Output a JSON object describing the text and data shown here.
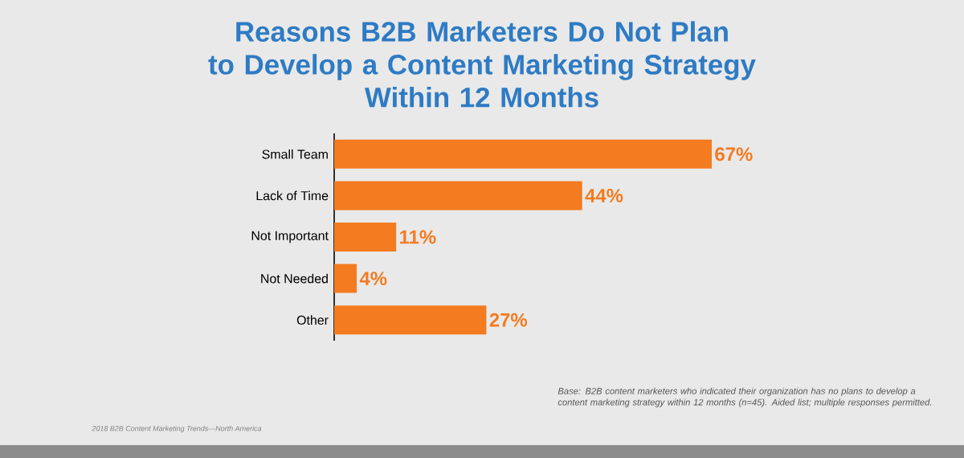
{
  "chart_data": {
    "type": "bar",
    "orientation": "horizontal",
    "title": "Reasons B2B Marketers Do Not Plan\nto Develop a Content Marketing Strategy\nWithin 12 Months",
    "categories": [
      "Small Team",
      "Lack of Time",
      "Not Important",
      "Not Needed",
      "Other"
    ],
    "values": [
      67,
      44,
      11,
      4,
      27
    ],
    "value_labels": [
      "67%",
      "44%",
      "11%",
      "4%",
      "27%"
    ],
    "color": "#f47b20",
    "tick_labels": "y",
    "annotations": [
      "Base: B2B content marketers who indicated their organization has no plans to develop a content marketing strategy within 12 months (n=45). Aided list; multiple responses permitted.",
      "2018 B2B Content Marketing Trends—North America"
    ]
  }
}
